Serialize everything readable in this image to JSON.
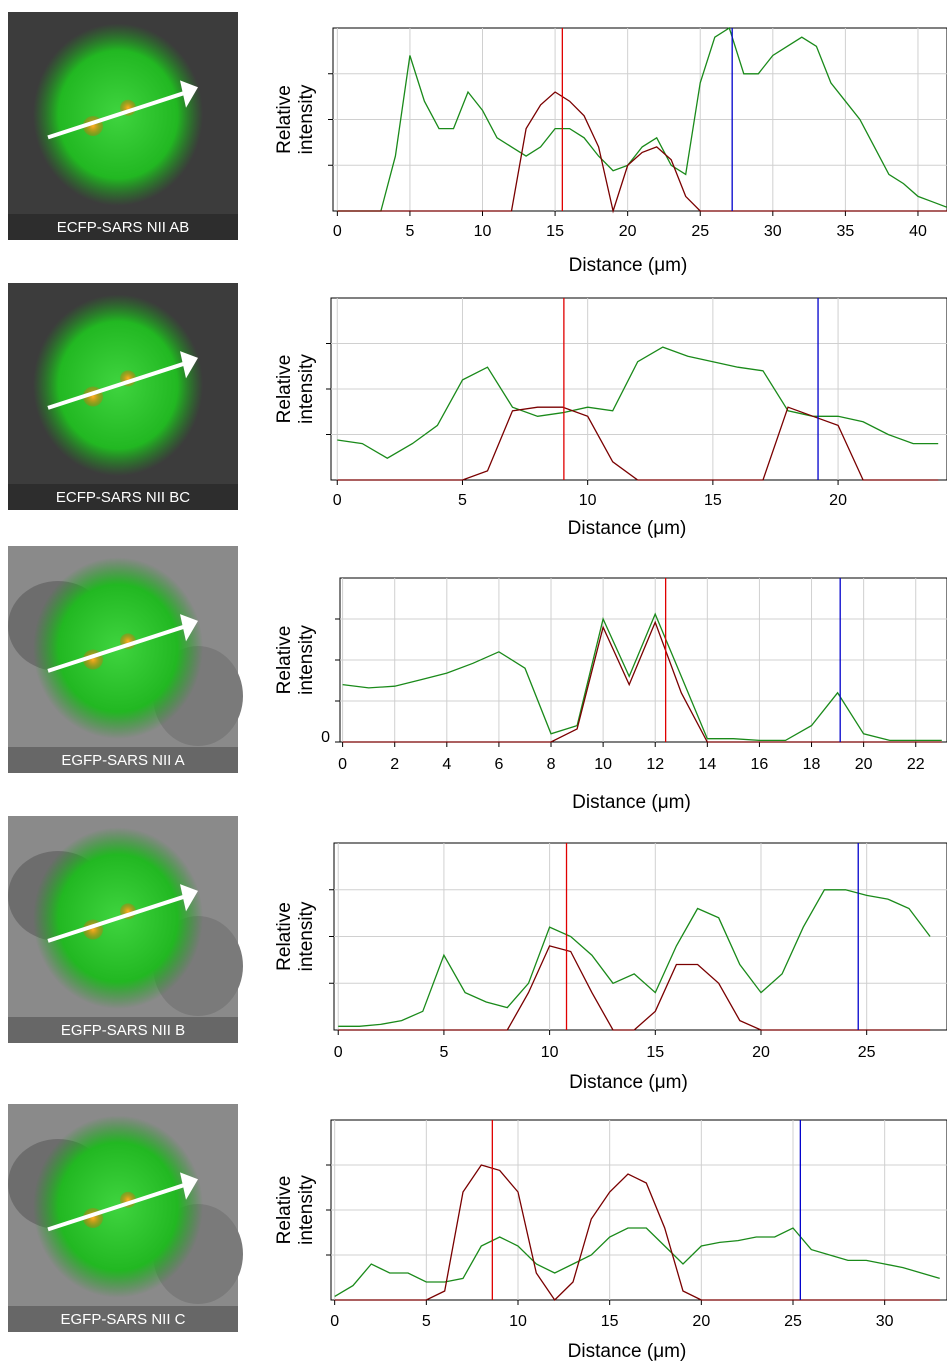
{
  "images": [
    {
      "label": "ECFP-SARS NII AB"
    },
    {
      "label": "ECFP-SARS NII BC"
    },
    {
      "label": "EGFP-SARS NII A"
    },
    {
      "label": "EGFP-SARS NII B"
    },
    {
      "label": "EGFP-SARS NII C"
    }
  ],
  "chart_data": [
    {
      "type": "line",
      "ylabel": [
        "Relative",
        "intensity"
      ],
      "xlabel": "Distance (μm)",
      "xlim": [
        -0.3,
        42
      ],
      "xticks": [
        0,
        5,
        10,
        15,
        20,
        25,
        30,
        35,
        40
      ],
      "ylim": [
        0,
        100
      ],
      "grid": true,
      "x": [
        0,
        1,
        2,
        3,
        4,
        5,
        6,
        7,
        8,
        9,
        10,
        11,
        12,
        13,
        14,
        15,
        16,
        17,
        18,
        19,
        20,
        21,
        22,
        23,
        24,
        25,
        26,
        27,
        28,
        29,
        30,
        31,
        32,
        33,
        34,
        35,
        36,
        37,
        38,
        39,
        40,
        41,
        42
      ],
      "series": [
        {
          "color": "#1a8a1a",
          "values": [
            0,
            0,
            0,
            0,
            30,
            85,
            60,
            45,
            45,
            65,
            55,
            40,
            35,
            30,
            35,
            45,
            45,
            40,
            30,
            22,
            25,
            35,
            40,
            25,
            20,
            70,
            95,
            100,
            75,
            75,
            85,
            90,
            95,
            90,
            70,
            60,
            50,
            35,
            20,
            15,
            8,
            5,
            2
          ]
        },
        {
          "color": "#7a0000",
          "values": [
            0,
            0,
            0,
            0,
            0,
            0,
            0,
            0,
            0,
            0,
            0,
            0,
            0,
            45,
            58,
            65,
            60,
            52,
            35,
            0,
            25,
            32,
            35,
            28,
            8,
            0,
            0,
            0,
            0,
            0,
            0,
            0,
            0,
            0,
            0,
            0,
            0,
            0,
            0,
            0,
            0,
            0,
            0
          ]
        }
      ],
      "markers": [
        {
          "color": "#e00000",
          "x": 15.5
        },
        {
          "color": "#0000cc",
          "x": 27.2
        }
      ]
    },
    {
      "type": "line",
      "ylabel": [
        "Relative",
        "intensity"
      ],
      "xlabel": "Distance (μm)",
      "xlim": [
        -0.25,
        24.35
      ],
      "xticks": [
        0,
        5,
        10,
        15,
        20
      ],
      "ylim": [
        0,
        100
      ],
      "grid": true,
      "x": [
        0,
        1,
        2,
        3,
        4,
        5,
        6,
        7,
        8,
        9,
        10,
        11,
        12,
        13,
        14,
        15,
        16,
        17,
        18,
        19,
        20,
        21,
        22,
        23,
        24
      ],
      "series": [
        {
          "color": "#1a8a1a",
          "values": [
            22,
            20,
            12,
            20,
            30,
            55,
            62,
            40,
            35,
            37,
            40,
            38,
            65,
            73,
            68,
            65,
            62,
            60,
            38,
            35,
            35,
            32,
            25,
            20,
            20
          ]
        },
        {
          "color": "#7a0000",
          "values": [
            0,
            0,
            0,
            0,
            0,
            0,
            5,
            38,
            40,
            40,
            35,
            10,
            0,
            0,
            0,
            0,
            0,
            0,
            40,
            35,
            30,
            0,
            0,
            0,
            0
          ]
        }
      ],
      "markers": [
        {
          "color": "#e00000",
          "x": 9.05
        },
        {
          "color": "#0000cc",
          "x": 19.2
        }
      ]
    },
    {
      "type": "line",
      "ylabel": [
        "Relative",
        "intensity"
      ],
      "xlabel": "Distance (μm)",
      "xlim": [
        -0.1,
        23.2
      ],
      "xticks": [
        0,
        2,
        4,
        6,
        8,
        10,
        12,
        14,
        16,
        18,
        20,
        22
      ],
      "ylim": [
        0,
        100
      ],
      "yticks": [
        0
      ],
      "grid": true,
      "x": [
        0,
        1,
        2,
        3,
        4,
        5,
        6,
        7,
        8,
        9,
        10,
        11,
        12,
        13,
        14,
        15,
        16,
        17,
        18,
        19,
        20,
        21,
        22,
        23
      ],
      "series": [
        {
          "color": "#1a8a1a",
          "values": [
            35,
            33,
            34,
            38,
            42,
            48,
            55,
            45,
            5,
            10,
            75,
            40,
            78,
            40,
            2,
            2,
            1,
            1,
            10,
            30,
            5,
            1,
            1,
            1
          ]
        },
        {
          "color": "#7a0000",
          "values": [
            0,
            0,
            0,
            0,
            0,
            0,
            0,
            0,
            0,
            8,
            70,
            35,
            73,
            30,
            0,
            0,
            0,
            0,
            0,
            0,
            0,
            0,
            0,
            0
          ]
        }
      ],
      "markers": [
        {
          "color": "#e00000",
          "x": 12.4
        },
        {
          "color": "#0000cc",
          "x": 19.1
        }
      ]
    },
    {
      "type": "line",
      "ylabel": [
        "Relative",
        "intensity"
      ],
      "xlabel": "Distance (μm)",
      "xlim": [
        -0.2,
        28.8
      ],
      "xticks": [
        0,
        5,
        10,
        15,
        20,
        25
      ],
      "ylim": [
        0,
        100
      ],
      "grid": true,
      "x": [
        0,
        1,
        2,
        3,
        4,
        5,
        6,
        7,
        8,
        9,
        10,
        11,
        12,
        13,
        14,
        15,
        16,
        17,
        18,
        19,
        20,
        21,
        22,
        23,
        24,
        25,
        26,
        27,
        28
      ],
      "series": [
        {
          "color": "#1a8a1a",
          "values": [
            2,
            2,
            3,
            5,
            10,
            40,
            20,
            15,
            12,
            25,
            55,
            50,
            40,
            25,
            30,
            20,
            45,
            65,
            60,
            35,
            20,
            30,
            55,
            75,
            75,
            72,
            70,
            65,
            50
          ]
        },
        {
          "color": "#7a0000",
          "values": [
            0,
            0,
            0,
            0,
            0,
            0,
            0,
            0,
            0,
            20,
            45,
            42,
            20,
            0,
            0,
            10,
            35,
            35,
            25,
            5,
            0,
            0,
            0,
            0,
            0,
            0,
            0,
            0,
            0
          ]
        }
      ],
      "markers": [
        {
          "color": "#e00000",
          "x": 10.8
        },
        {
          "color": "#0000cc",
          "x": 24.6
        }
      ]
    },
    {
      "type": "line",
      "ylabel": [
        "Relative",
        "intensity"
      ],
      "xlabel": "Distance (μm)",
      "xlim": [
        -0.2,
        33.4
      ],
      "xticks": [
        0,
        5,
        10,
        15,
        20,
        25,
        30
      ],
      "ylim": [
        0,
        100
      ],
      "grid": true,
      "x": [
        0,
        1,
        2,
        3,
        4,
        5,
        6,
        7,
        8,
        9,
        10,
        11,
        12,
        13,
        14,
        15,
        16,
        17,
        18,
        19,
        20,
        21,
        22,
        23,
        24,
        25,
        26,
        27,
        28,
        29,
        30,
        31,
        32,
        33
      ],
      "series": [
        {
          "color": "#1a8a1a",
          "values": [
            2,
            8,
            20,
            15,
            15,
            10,
            10,
            12,
            30,
            35,
            30,
            20,
            15,
            20,
            25,
            35,
            40,
            40,
            30,
            20,
            30,
            32,
            33,
            35,
            35,
            40,
            28,
            25,
            22,
            22,
            20,
            18,
            15,
            12
          ]
        },
        {
          "color": "#7a0000",
          "values": [
            0,
            0,
            0,
            0,
            0,
            0,
            5,
            60,
            75,
            72,
            60,
            15,
            0,
            10,
            45,
            60,
            70,
            65,
            40,
            5,
            0,
            0,
            0,
            0,
            0,
            0,
            0,
            0,
            0,
            0,
            0,
            0,
            0,
            0
          ]
        }
      ],
      "markers": [
        {
          "color": "#e00000",
          "x": 8.6
        },
        {
          "color": "#0000cc",
          "x": 25.4
        }
      ]
    }
  ]
}
